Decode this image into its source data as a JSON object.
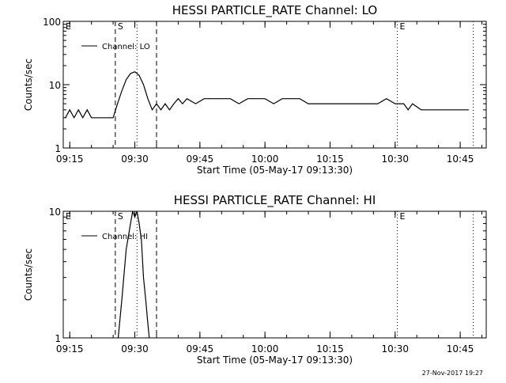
{
  "chart_data": [
    {
      "type": "line",
      "title": "HESSI PARTICLE_RATE Channel: LO",
      "xlabel": "Start Time (05-May-17 09:13:30)",
      "ylabel": "Counts/sec",
      "yscale": "log",
      "ylim": [
        1,
        100
      ],
      "xlim": [
        "09:13:30",
        "10:51:00"
      ],
      "x_ticks": [
        "09:15",
        "09:30",
        "09:45",
        "10:00",
        "10:15",
        "10:30",
        "10:45"
      ],
      "y_ticks": [
        "1",
        "10",
        "100"
      ],
      "legend": {
        "position": "top-left"
      },
      "series": [
        {
          "name": "Channel: LO",
          "x": [
            "09:14:00",
            "09:15:00",
            "09:16:00",
            "09:17:00",
            "09:18:00",
            "09:19:00",
            "09:20:00",
            "09:21:00",
            "09:22:00",
            "09:23:00",
            "09:24:00",
            "09:25:00",
            "09:26:00",
            "09:27:00",
            "09:28:00",
            "09:29:00",
            "09:30:00",
            "09:31:00",
            "09:32:00",
            "09:33:00",
            "09:34:00",
            "09:35:00",
            "09:36:00",
            "09:37:00",
            "09:38:00",
            "09:39:00",
            "09:40:00",
            "09:41:00",
            "09:42:00",
            "09:44:00",
            "09:46:00",
            "09:48:00",
            "09:50:00",
            "09:52:00",
            "09:54:00",
            "09:56:00",
            "09:58:00",
            "10:00:00",
            "10:02:00",
            "10:04:00",
            "10:06:00",
            "10:08:00",
            "10:10:00",
            "10:12:00",
            "10:14:00",
            "10:16:00",
            "10:18:00",
            "10:20:00",
            "10:22:00",
            "10:24:00",
            "10:26:00",
            "10:28:00",
            "10:30:00",
            "10:31:00",
            "10:32:00",
            "10:33:00",
            "10:34:00",
            "10:36:00",
            "10:38:00",
            "10:40:00",
            "10:42:00",
            "10:44:00",
            "10:46:00",
            "10:47:00"
          ],
          "values": [
            3,
            4,
            3,
            4,
            3,
            4,
            3,
            3,
            3,
            3,
            3,
            3,
            5,
            8,
            12,
            15,
            16,
            14,
            10,
            6,
            4,
            5,
            4,
            5,
            4,
            5,
            6,
            5,
            6,
            5,
            6,
            6,
            6,
            6,
            5,
            6,
            6,
            6,
            5,
            6,
            6,
            6,
            5,
            5,
            5,
            5,
            5,
            5,
            5,
            5,
            5,
            6,
            5,
            5,
            5,
            4,
            5,
            4,
            4,
            4,
            4,
            4,
            4,
            4
          ]
        }
      ],
      "annotations": [
        {
          "label": "E",
          "style": "edge",
          "time": "09:13:30"
        },
        {
          "label": "S",
          "style": "dashed",
          "time": "09:25:30"
        },
        {
          "label": "",
          "style": "dotted",
          "time": "09:30:30"
        },
        {
          "label": "",
          "style": "dashed",
          "time": "09:35:00"
        },
        {
          "label": "E",
          "style": "dotted",
          "time": "10:30:30"
        },
        {
          "label": "",
          "style": "dotted",
          "time": "10:48:00"
        }
      ]
    },
    {
      "type": "line",
      "title": "HESSI PARTICLE_RATE Channel: HI",
      "xlabel": "Start Time (05-May-17 09:13:30)",
      "ylabel": "Counts/sec",
      "yscale": "log",
      "ylim": [
        1,
        10
      ],
      "xlim": [
        "09:13:30",
        "10:51:00"
      ],
      "x_ticks": [
        "09:15",
        "09:30",
        "09:45",
        "10:00",
        "10:15",
        "10:30",
        "10:45"
      ],
      "y_ticks": [
        "1",
        "10"
      ],
      "legend": {
        "position": "top-left"
      },
      "series": [
        {
          "name": "Channel: HI",
          "x": [
            "09:26:10",
            "09:27:00",
            "09:28:00",
            "09:29:00",
            "09:29:30",
            "09:30:00",
            "09:30:30",
            "09:31:00",
            "09:31:30",
            "09:32:00",
            "09:32:30",
            "09:33:00",
            "09:33:20"
          ],
          "values": [
            1,
            2,
            5,
            8,
            10,
            9,
            10,
            8,
            6,
            3,
            2,
            1.3,
            1
          ]
        }
      ],
      "annotations": [
        {
          "label": "E",
          "style": "edge",
          "time": "09:13:30"
        },
        {
          "label": "S",
          "style": "dashed",
          "time": "09:25:30"
        },
        {
          "label": "",
          "style": "dotted",
          "time": "09:30:30"
        },
        {
          "label": "",
          "style": "dashed",
          "time": "09:35:00"
        },
        {
          "label": "E",
          "style": "dotted",
          "time": "10:30:30"
        },
        {
          "label": "",
          "style": "dotted",
          "time": "10:48:00"
        }
      ]
    }
  ],
  "footer": {
    "timestamp": "27-Nov-2017 19:27"
  }
}
